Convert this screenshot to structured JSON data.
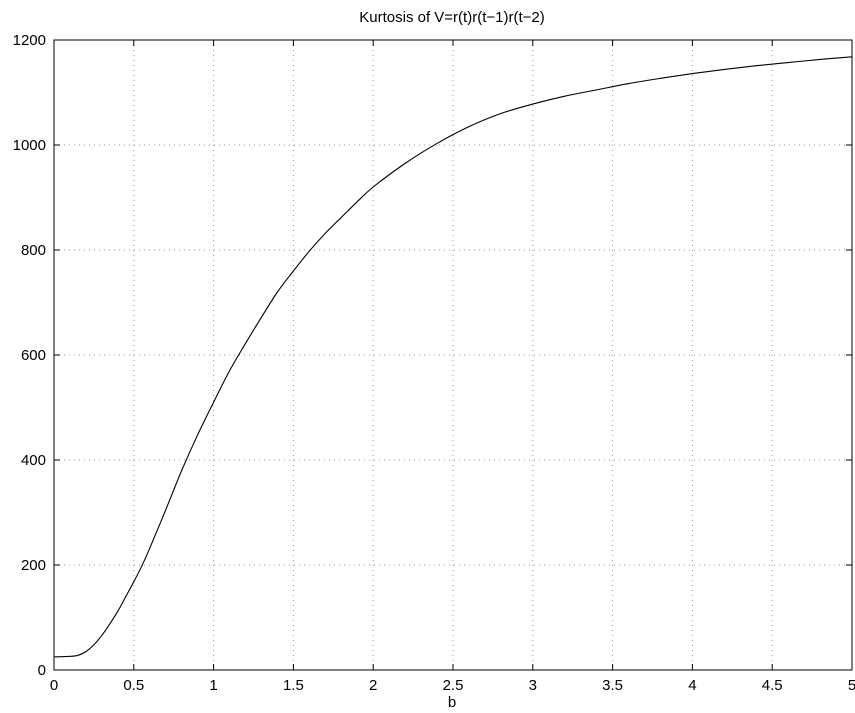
{
  "chart_data": {
    "type": "line",
    "title": "Kurtosis of V=r(t)r(t−1)r(t−2)",
    "xlabel": "b",
    "ylabel": "",
    "xlim": [
      0,
      5
    ],
    "ylim": [
      0,
      1200
    ],
    "xticks": [
      0,
      0.5,
      1,
      1.5,
      2,
      2.5,
      3,
      3.5,
      4,
      4.5,
      5
    ],
    "xtick_labels": [
      "0",
      "0.5",
      "1",
      "1.5",
      "2",
      "2.5",
      "3",
      "3.5",
      "4",
      "4.5",
      "5"
    ],
    "yticks": [
      0,
      200,
      400,
      600,
      800,
      1000,
      1200
    ],
    "ytick_labels": [
      "0",
      "200",
      "400",
      "600",
      "800",
      "1000",
      "1200"
    ],
    "grid": true,
    "series": [
      {
        "color": "#000000",
        "x": [
          0,
          0.1,
          0.15,
          0.2,
          0.25,
          0.3,
          0.35,
          0.4,
          0.45,
          0.5,
          0.55,
          0.6,
          0.7,
          0.8,
          0.9,
          1.0,
          1.1,
          1.2,
          1.3,
          1.4,
          1.5,
          1.6,
          1.7,
          1.8,
          1.9,
          2.0,
          2.2,
          2.4,
          2.6,
          2.8,
          3.0,
          3.2,
          3.4,
          3.6,
          3.8,
          4.0,
          4.2,
          4.4,
          4.6,
          4.8,
          5.0
        ],
        "values": [
          25,
          26,
          28,
          35,
          48,
          66,
          88,
          112,
          140,
          168,
          198,
          232,
          305,
          380,
          448,
          510,
          570,
          622,
          672,
          720,
          760,
          798,
          832,
          862,
          892,
          920,
          965,
          1003,
          1035,
          1060,
          1078,
          1093,
          1105,
          1117,
          1127,
          1136,
          1144,
          1151,
          1157,
          1163,
          1168
        ]
      }
    ]
  }
}
